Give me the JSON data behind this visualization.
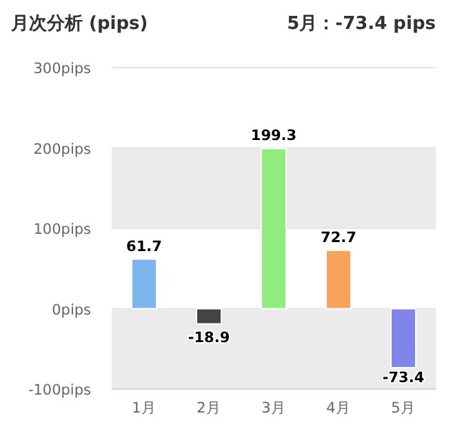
{
  "chart_data": {
    "type": "bar",
    "title": "月次分析 (pips)",
    "subtitle": "5月：-73.4 pips",
    "categories": [
      "1月",
      "2月",
      "3月",
      "4月",
      "5月"
    ],
    "values": [
      61.7,
      -18.9,
      199.3,
      72.7,
      -73.4
    ],
    "colors": [
      "#7cb5ec",
      "#434348",
      "#90ed7d",
      "#f7a35c",
      "#8085e9"
    ],
    "ylim": [
      -100,
      300
    ],
    "yticks": [
      {
        "value": -100,
        "label": "-100pips"
      },
      {
        "value": 0,
        "label": "0pips"
      },
      {
        "value": 100,
        "label": "100pips"
      },
      {
        "value": 200,
        "label": "200pips"
      },
      {
        "value": 300,
        "label": "300pips"
      }
    ],
    "grid": "y",
    "bands": [
      {
        "axis": "y",
        "from": 100,
        "to": 200,
        "color": "#ebebeb"
      },
      {
        "axis": "y",
        "from": -100,
        "to": 0,
        "color": "#ebebeb"
      }
    ],
    "data_labels": true
  }
}
